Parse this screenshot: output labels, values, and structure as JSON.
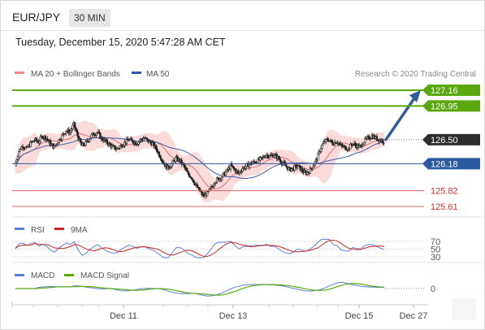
{
  "header": {
    "symbol": "EUR/JPY",
    "timeframe": "30 MIN"
  },
  "timestamp": "Tuesday, December 15, 2020 5:47:28 AM CET",
  "legend": {
    "ma20_bb": "MA 20 + Bollinger Bands",
    "ma50": "MA 50",
    "credit": "Research © 2020 Trading Central",
    "rsi": "RSI",
    "rsi_ma": "9MA",
    "macd": "MACD",
    "macd_signal": "MACD Signal"
  },
  "colors": {
    "candle_up": "#222222",
    "candle_down": "#222222",
    "bb_fill": "#f9caca",
    "ma20": "#e07070",
    "ma50": "#3a5ea8",
    "target_green": "#5aa810",
    "support_red": "#e0606a",
    "pivot_blue": "#2c5a9e",
    "arrow": "#2f5d9a",
    "rsi": "#5e7fd8",
    "rsi_ma": "#cc2222",
    "macd": "#5e7fd8",
    "macd_signal": "#5aa810"
  },
  "chart_data": [
    {
      "type": "line",
      "title": "EUR/JPY 30 MIN",
      "x_ticks": [
        "Dec 11",
        "Dec 13",
        "Dec 15",
        "Dec 27"
      ],
      "ylim": [
        125.45,
        127.35
      ],
      "levels": [
        {
          "value": 127.16,
          "label": "127.16",
          "kind": "target"
        },
        {
          "value": 126.95,
          "label": "126.95",
          "kind": "target"
        },
        {
          "value": 126.5,
          "label": "126.50",
          "kind": "last"
        },
        {
          "value": 126.18,
          "label": "126.18",
          "kind": "pivot"
        },
        {
          "value": 125.82,
          "label": "125.82",
          "kind": "support"
        },
        {
          "value": 125.61,
          "label": "125.61",
          "kind": "support"
        }
      ],
      "forecast": {
        "from": 126.5,
        "to": 127.16
      },
      "price_path": [
        126.15,
        126.35,
        126.42,
        126.38,
        126.45,
        126.5,
        126.47,
        126.55,
        126.52,
        126.45,
        126.4,
        126.48,
        126.55,
        126.62,
        126.6,
        126.7,
        126.55,
        126.42,
        126.45,
        126.52,
        126.58,
        126.6,
        126.52,
        126.48,
        126.44,
        126.4,
        126.38,
        126.42,
        126.46,
        126.5,
        126.48,
        126.45,
        126.5,
        126.52,
        126.48,
        126.45,
        126.38,
        126.28,
        126.18,
        126.12,
        126.18,
        126.25,
        126.22,
        126.15,
        126.05,
        126.0,
        125.9,
        125.82,
        125.75,
        125.78,
        125.85,
        125.95,
        125.98,
        126.02,
        126.08,
        126.15,
        126.1,
        126.05,
        126.12,
        126.15,
        126.18,
        126.2,
        126.22,
        126.25,
        126.3,
        126.28,
        126.3,
        126.26,
        126.2,
        126.15,
        126.1,
        126.12,
        126.15,
        126.1,
        126.05,
        126.08,
        126.15,
        126.25,
        126.4,
        126.48,
        126.5,
        126.45,
        126.48,
        126.42,
        126.4,
        126.38,
        126.45,
        126.42,
        126.4,
        126.48,
        126.52,
        126.55,
        126.52,
        126.5,
        126.48
      ],
      "series": [
        {
          "name": "MA 20 + Bollinger Bands"
        },
        {
          "name": "MA 50"
        }
      ]
    },
    {
      "type": "line",
      "ylim": [
        20,
        80
      ],
      "y_ticks": [
        "70",
        "50",
        "30"
      ],
      "series": [
        {
          "name": "RSI"
        },
        {
          "name": "9MA"
        }
      ]
    },
    {
      "type": "line",
      "y_ticks": [
        "0"
      ],
      "series": [
        {
          "name": "MACD"
        },
        {
          "name": "MACD Signal"
        }
      ]
    }
  ]
}
